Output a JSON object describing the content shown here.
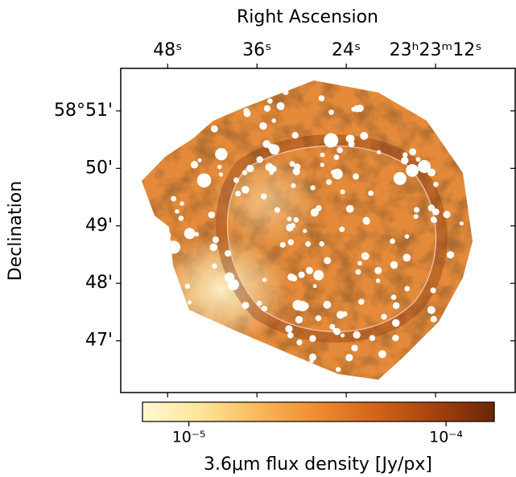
{
  "chart_data": {
    "type": "image",
    "xlabel": "Right Ascension",
    "ylabel": "Declination",
    "xlim": [
      54.3,
      1.3
    ],
    "xticks": [
      {
        "value": 48,
        "label": "48ˢ"
      },
      {
        "value": 36,
        "label": "36ˢ"
      },
      {
        "value": 24,
        "label": "24ˢ"
      },
      {
        "value": 12,
        "label": "23ʰ23ᵐ12ˢ"
      }
    ],
    "ylim": [
      46.1,
      51.74
    ],
    "yticks": [
      {
        "value": 51,
        "label": "58°51'"
      },
      {
        "value": 50,
        "label": "50'"
      },
      {
        "value": 49,
        "label": "49'"
      },
      {
        "value": 48,
        "label": "48'"
      },
      {
        "value": 47,
        "label": "47'"
      }
    ],
    "colorbar": {
      "label": "3.6μm flux density [Jy/px]",
      "log": true,
      "clim": [
        6.6e-06,
        0.000154
      ],
      "ticks": [
        {
          "value": 1e-05,
          "label": "10⁻⁵"
        },
        {
          "value": 0.0001,
          "label": "10⁻⁴"
        }
      ],
      "colors": [
        "#fff9cf",
        "#fde59a",
        "#f8b85a",
        "#ee8b2f",
        "#d2631a",
        "#a3420f",
        "#6a2608"
      ]
    }
  }
}
